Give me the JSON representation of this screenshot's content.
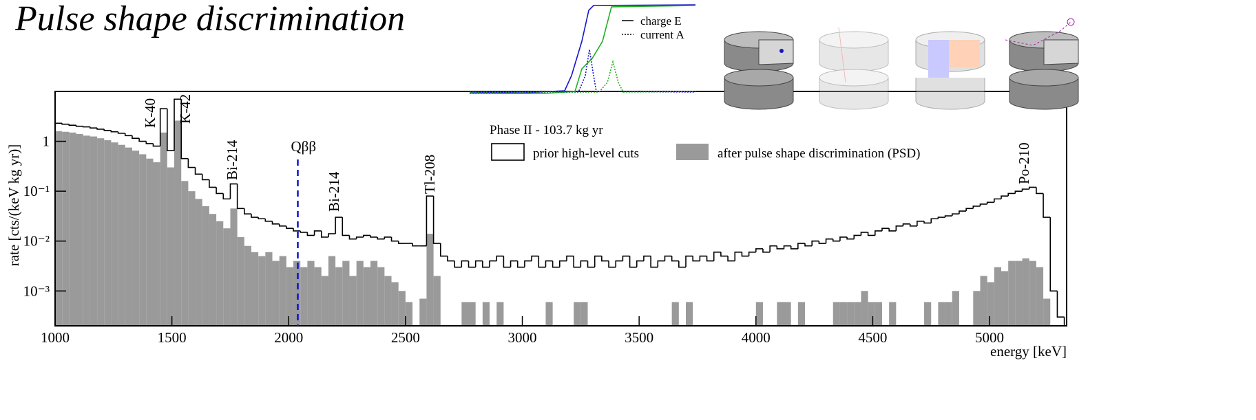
{
  "title": "Pulse shape discrimination",
  "inset": {
    "legend": [
      "charge E",
      "current A"
    ]
  },
  "chart_data": {
    "type": "histogram",
    "legend_title": "Phase II - 103.7 kg yr",
    "x_label": "energy [keV]",
    "y_label": "rate [cts/(keV kg yr)]",
    "log_y": true,
    "xlim": [
      1000,
      5330
    ],
    "ylim": [
      0.0002,
      10
    ],
    "xticks": [
      1000,
      1500,
      2000,
      2500,
      3000,
      3500,
      4000,
      4500,
      5000
    ],
    "yticks": [
      {
        "value": 0.001,
        "label": "10⁻³"
      },
      {
        "value": 0.01,
        "label": "10⁻²"
      },
      {
        "value": 0.1,
        "label": "10⁻¹"
      },
      1
    ],
    "bins": [
      1000,
      1030,
      1060,
      1090,
      1120,
      1150,
      1180,
      1210,
      1240,
      1270,
      1300,
      1330,
      1360,
      1390,
      1420,
      1450,
      1480,
      1510,
      1540,
      1570,
      1600,
      1630,
      1660,
      1690,
      1720,
      1750,
      1780,
      1810,
      1840,
      1870,
      1900,
      1930,
      1960,
      1990,
      2020,
      2050,
      2080,
      2110,
      2140,
      2170,
      2200,
      2230,
      2260,
      2290,
      2320,
      2350,
      2380,
      2410,
      2440,
      2470,
      2500,
      2530,
      2560,
      2590,
      2620,
      2650,
      2680,
      2710,
      2740,
      2770,
      2800,
      2830,
      2860,
      2890,
      2920,
      2950,
      2980,
      3010,
      3040,
      3070,
      3100,
      3130,
      3160,
      3190,
      3220,
      3250,
      3280,
      3310,
      3340,
      3370,
      3400,
      3430,
      3460,
      3490,
      3520,
      3550,
      3580,
      3610,
      3640,
      3670,
      3700,
      3730,
      3760,
      3790,
      3820,
      3850,
      3880,
      3910,
      3940,
      3970,
      4000,
      4030,
      4060,
      4090,
      4120,
      4150,
      4180,
      4210,
      4240,
      4270,
      4300,
      4330,
      4360,
      4390,
      4420,
      4450,
      4480,
      4510,
      4540,
      4570,
      4600,
      4630,
      4660,
      4690,
      4720,
      4750,
      4780,
      4810,
      4840,
      4870,
      4900,
      4930,
      4960,
      4990,
      5020,
      5050,
      5080,
      5110,
      5140,
      5170,
      5200,
      5230,
      5260,
      5290,
      5320
    ],
    "series": [
      {
        "name": "after pulse shape discrimination (PSD)",
        "color": "#9a9a9a",
        "style": "filled",
        "values": [
          1.6,
          1.55,
          1.5,
          1.4,
          1.3,
          1.25,
          1.15,
          1.05,
          0.95,
          0.85,
          0.75,
          0.65,
          0.55,
          0.45,
          0.38,
          1.5,
          0.3,
          2.6,
          0.16,
          0.1,
          0.07,
          0.05,
          0.035,
          0.025,
          0.018,
          0.045,
          0.012,
          0.008,
          0.006,
          0.005,
          0.006,
          0.004,
          0.005,
          0.003,
          0.004,
          0.003,
          0.004,
          0.003,
          0.002,
          0.005,
          0.003,
          0.004,
          0.002,
          0.004,
          0.003,
          0.004,
          0.003,
          0.002,
          0.0015,
          0.001,
          0.0006,
          0,
          0.0007,
          0.014,
          0.002,
          0,
          0,
          0,
          0.0006,
          0.0006,
          0,
          0.0006,
          0,
          0.0006,
          0,
          0,
          0,
          0,
          0,
          0,
          0.0006,
          0,
          0,
          0,
          0.0006,
          0.0006,
          0,
          0,
          0,
          0,
          0,
          0,
          0,
          0,
          0,
          0,
          0,
          0,
          0.0006,
          0,
          0.0006,
          0,
          0,
          0,
          0,
          0,
          0,
          0,
          0,
          0,
          0.0006,
          0,
          0,
          0.0006,
          0.0006,
          0,
          0.0006,
          0,
          0,
          0,
          0,
          0.0006,
          0.0006,
          0.0006,
          0.0006,
          0.001,
          0.0006,
          0.0006,
          0,
          0.0006,
          0,
          0,
          0,
          0,
          0.0006,
          0,
          0.0006,
          0.0006,
          0.001,
          0,
          0,
          0.001,
          0.002,
          0.0015,
          0.003,
          0.0025,
          0.004,
          0.004,
          0.0045,
          0.004,
          0.003,
          0.0007,
          0,
          0
        ]
      },
      {
        "name": "prior high-level cuts",
        "color": "#000000",
        "style": "step",
        "values": [
          2.3,
          2.2,
          2.1,
          2.0,
          1.95,
          1.85,
          1.75,
          1.65,
          1.55,
          1.45,
          1.3,
          1.15,
          1.0,
          0.9,
          0.8,
          4.5,
          0.65,
          7.0,
          0.45,
          0.3,
          0.22,
          0.17,
          0.12,
          0.09,
          0.07,
          0.14,
          0.045,
          0.035,
          0.03,
          0.028,
          0.025,
          0.022,
          0.02,
          0.018,
          0.016,
          0.015,
          0.013,
          0.016,
          0.012,
          0.014,
          0.03,
          0.013,
          0.011,
          0.012,
          0.013,
          0.012,
          0.011,
          0.012,
          0.01,
          0.009,
          0.009,
          0.008,
          0.008,
          0.08,
          0.009,
          0.005,
          0.004,
          0.003,
          0.004,
          0.003,
          0.004,
          0.003,
          0.004,
          0.005,
          0.003,
          0.004,
          0.003,
          0.004,
          0.005,
          0.003,
          0.004,
          0.003,
          0.004,
          0.005,
          0.003,
          0.004,
          0.003,
          0.005,
          0.004,
          0.003,
          0.004,
          0.005,
          0.003,
          0.004,
          0.005,
          0.003,
          0.004,
          0.005,
          0.004,
          0.003,
          0.005,
          0.004,
          0.005,
          0.004,
          0.006,
          0.005,
          0.004,
          0.006,
          0.005,
          0.006,
          0.007,
          0.006,
          0.008,
          0.007,
          0.008,
          0.007,
          0.009,
          0.008,
          0.01,
          0.009,
          0.011,
          0.01,
          0.012,
          0.011,
          0.013,
          0.015,
          0.013,
          0.016,
          0.018,
          0.016,
          0.02,
          0.022,
          0.02,
          0.025,
          0.023,
          0.028,
          0.03,
          0.032,
          0.035,
          0.04,
          0.045,
          0.05,
          0.055,
          0.06,
          0.07,
          0.08,
          0.09,
          0.1,
          0.11,
          0.12,
          0.09,
          0.03,
          0.001,
          0.0003
        ]
      }
    ],
    "annotations": [
      {
        "text": "K-40"
      },
      {
        "text": "K-42"
      },
      {
        "text": "Bi-214"
      },
      {
        "text": "Bi-214"
      },
      {
        "text": "Tl-208"
      },
      {
        "text": "Po-210"
      }
    ],
    "qbb": {
      "label": "Qββ",
      "value": 2039,
      "color": "#1010d0"
    }
  }
}
